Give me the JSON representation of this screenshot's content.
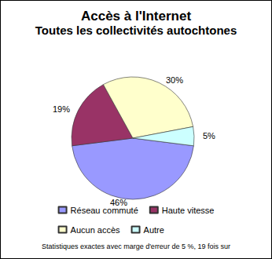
{
  "chart_data": {
    "type": "pie",
    "title": "Accès à l'Internet",
    "subtitle": "Toutes les collectivités autochtones",
    "categories": [
      "Réseau commuté",
      "Haute vitesse",
      "Aucun accès",
      "Autre"
    ],
    "values": [
      46,
      19,
      30,
      5
    ],
    "value_labels": [
      "46%",
      "19%",
      "30%",
      "5%"
    ],
    "colors": [
      "#9999ff",
      "#993366",
      "#ffffcc",
      "#ccffff"
    ],
    "data_labels": true,
    "legend": "bottom",
    "annotations": [
      "Statistiques exactes avec marge d'erreur de 5 %, 19 fois sur"
    ]
  }
}
